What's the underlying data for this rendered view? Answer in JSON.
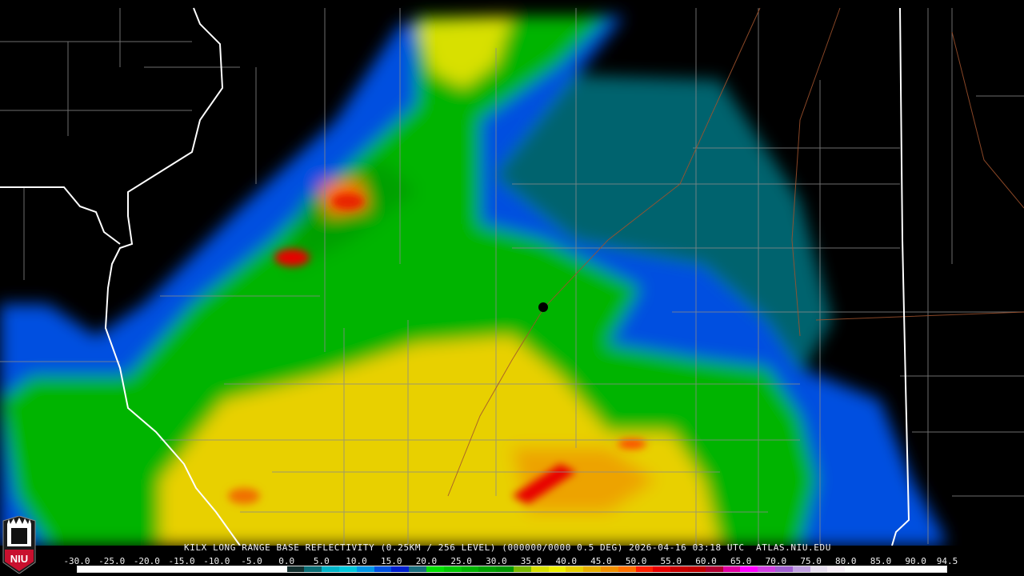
{
  "status_line": "KILX LONG RANGE BASE REFLECTIVITY (0.25KM / 256 LEVEL) (000000/0000 0.5 DEG) 2026-04-16 03:18 UTC  ATLAS.NIU.EDU",
  "logo_text": "NIU",
  "legend": {
    "tick_labels": [
      "-30.0",
      "-25.0",
      "-20.0",
      "-15.0",
      "-10.0",
      "-5.0",
      "0.0",
      "5.0",
      "10.0",
      "15.0",
      "20.0",
      "25.0",
      "30.0",
      "35.0",
      "40.0",
      "45.0",
      "50.0",
      "55.0",
      "60.0",
      "65.0",
      "70.0",
      "75.0",
      "80.0",
      "85.0",
      "90.0",
      "94.5"
    ],
    "min": -30,
    "max": 94.5,
    "color_stops": [
      {
        "dbz": -30,
        "color": "#ffffff"
      },
      {
        "dbz": 0,
        "color": "#14302f"
      },
      {
        "dbz": 2.5,
        "color": "#0b6e75"
      },
      {
        "dbz": 5,
        "color": "#00b4c8"
      },
      {
        "dbz": 7.5,
        "color": "#00c8dc"
      },
      {
        "dbz": 10,
        "color": "#0096e6"
      },
      {
        "dbz": 12.5,
        "color": "#0050e0"
      },
      {
        "dbz": 15,
        "color": "#0020d0"
      },
      {
        "dbz": 17.5,
        "color": "#1a6e7e"
      },
      {
        "dbz": 20,
        "color": "#00e000"
      },
      {
        "dbz": 22.5,
        "color": "#00c800"
      },
      {
        "dbz": 25,
        "color": "#00b400"
      },
      {
        "dbz": 27.5,
        "color": "#00a000"
      },
      {
        "dbz": 30,
        "color": "#009600"
      },
      {
        "dbz": 32.5,
        "color": "#7ab800"
      },
      {
        "dbz": 35,
        "color": "#d8e000"
      },
      {
        "dbz": 37.5,
        "color": "#f0f000"
      },
      {
        "dbz": 40,
        "color": "#e8d000"
      },
      {
        "dbz": 42.5,
        "color": "#e8b000"
      },
      {
        "dbz": 45,
        "color": "#f09000"
      },
      {
        "dbz": 47.5,
        "color": "#ff7000"
      },
      {
        "dbz": 50,
        "color": "#ff2000"
      },
      {
        "dbz": 52.5,
        "color": "#e80000"
      },
      {
        "dbz": 55,
        "color": "#c80000"
      },
      {
        "dbz": 57.5,
        "color": "#c00000"
      },
      {
        "dbz": 60,
        "color": "#b00030"
      },
      {
        "dbz": 62.5,
        "color": "#e000a0"
      },
      {
        "dbz": 65,
        "color": "#ff00ff"
      },
      {
        "dbz": 67.5,
        "color": "#d040e0"
      },
      {
        "dbz": 70,
        "color": "#a060d0"
      },
      {
        "dbz": 72.5,
        "color": "#c0a0e0"
      },
      {
        "dbz": 75,
        "color": "#e8e0f0"
      },
      {
        "dbz": 77.5,
        "color": "#f8f0f8"
      },
      {
        "dbz": 80,
        "color": "#ffffff"
      }
    ]
  },
  "map": {
    "radar_site": "KILX",
    "background": "#000000",
    "county_line_color": "#8a8a8a",
    "state_line_color": "#ffffff",
    "highway_color": "#a0522d"
  }
}
